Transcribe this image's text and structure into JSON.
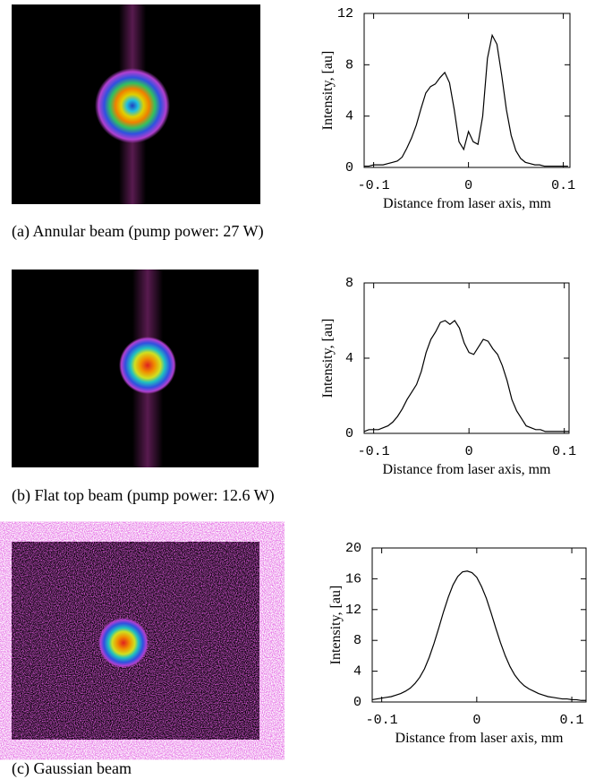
{
  "chart_data": [
    {
      "type": "line",
      "caption": "(a) Annular beam (pump power: 27 W)",
      "ylabel": "Intensity, [au]",
      "xlabel": "Distance from laser axis, mm",
      "color": "#000000",
      "xlim": [
        -0.11,
        0.107
      ],
      "ylim": [
        0,
        12
      ],
      "xticks": [
        -0.1,
        0,
        0.1
      ],
      "yticks": [
        0,
        4,
        8,
        12
      ],
      "x": [
        -0.11,
        -0.105,
        -0.1,
        -0.095,
        -0.09,
        -0.085,
        -0.08,
        -0.075,
        -0.07,
        -0.065,
        -0.06,
        -0.055,
        -0.05,
        -0.045,
        -0.04,
        -0.035,
        -0.03,
        -0.025,
        -0.02,
        -0.015,
        -0.01,
        -0.005,
        0,
        0.005,
        0.01,
        0.015,
        0.02,
        0.025,
        0.03,
        0.035,
        0.04,
        0.045,
        0.05,
        0.055,
        0.06,
        0.065,
        0.07,
        0.075,
        0.08,
        0.085,
        0.09,
        0.095,
        0.1,
        0.105
      ],
      "values": [
        0.1,
        0.1,
        0.2,
        0.2,
        0.2,
        0.3,
        0.4,
        0.5,
        0.8,
        1.5,
        2.3,
        3.3,
        4.6,
        5.8,
        6.3,
        6.5,
        7.0,
        7.4,
        6.6,
        4.5,
        2.0,
        1.4,
        2.8,
        2.0,
        1.8,
        4.0,
        8.5,
        10.3,
        9.6,
        7.2,
        4.5,
        2.5,
        1.3,
        0.7,
        0.4,
        0.3,
        0.2,
        0.2,
        0.1,
        0.1,
        0.1,
        0.1,
        0.1,
        0.1
      ]
    },
    {
      "type": "line",
      "caption": "(b) Flat top beam (pump power: 12.6 W)",
      "ylabel": "Intensity, [au]",
      "xlabel": "Distance from laser axis, mm",
      "color": "#000000",
      "xlim": [
        -0.11,
        0.105
      ],
      "ylim": [
        0,
        8
      ],
      "xticks": [
        -0.1,
        0,
        0.1
      ],
      "yticks": [
        0,
        4,
        8
      ],
      "x": [
        -0.11,
        -0.105,
        -0.1,
        -0.095,
        -0.09,
        -0.085,
        -0.08,
        -0.075,
        -0.07,
        -0.065,
        -0.06,
        -0.055,
        -0.05,
        -0.045,
        -0.04,
        -0.035,
        -0.03,
        -0.025,
        -0.02,
        -0.015,
        -0.01,
        -0.005,
        0,
        0.005,
        0.01,
        0.015,
        0.02,
        0.025,
        0.03,
        0.035,
        0.04,
        0.045,
        0.05,
        0.055,
        0.06,
        0.065,
        0.07,
        0.075,
        0.08,
        0.085,
        0.09,
        0.095,
        0.1,
        0.105
      ],
      "values": [
        0.1,
        0.2,
        0.2,
        0.2,
        0.3,
        0.4,
        0.6,
        0.9,
        1.3,
        1.8,
        2.2,
        2.6,
        3.3,
        4.3,
        5.0,
        5.4,
        5.9,
        6.0,
        5.8,
        6.0,
        5.6,
        4.8,
        4.3,
        4.2,
        4.6,
        5.0,
        4.9,
        4.5,
        4.2,
        3.6,
        2.8,
        1.8,
        1.2,
        0.8,
        0.4,
        0.3,
        0.2,
        0.2,
        0.1,
        0.1,
        0.1,
        0.1,
        0.1,
        0.1
      ]
    },
    {
      "type": "line",
      "caption": "(c) Gaussian beam",
      "ylabel": "Intensity, [au]",
      "xlabel": "Distance from laser axis, mm",
      "color": "#000000",
      "xlim": [
        -0.11,
        0.115
      ],
      "ylim": [
        0,
        20
      ],
      "xticks": [
        -0.1,
        0,
        0.1
      ],
      "yticks": [
        0,
        4,
        8,
        12,
        16,
        20
      ],
      "x": [
        -0.11,
        -0.105,
        -0.1,
        -0.095,
        -0.09,
        -0.085,
        -0.08,
        -0.075,
        -0.07,
        -0.065,
        -0.06,
        -0.055,
        -0.05,
        -0.045,
        -0.04,
        -0.035,
        -0.03,
        -0.025,
        -0.02,
        -0.015,
        -0.01,
        -0.005,
        0,
        0.005,
        0.01,
        0.015,
        0.02,
        0.025,
        0.03,
        0.035,
        0.04,
        0.045,
        0.05,
        0.055,
        0.06,
        0.065,
        0.07,
        0.075,
        0.08,
        0.085,
        0.09,
        0.095,
        0.1,
        0.105,
        0.11,
        0.115
      ],
      "values": [
        0.3,
        0.4,
        0.5,
        0.6,
        0.7,
        0.9,
        1.1,
        1.4,
        1.8,
        2.4,
        3.2,
        4.3,
        5.8,
        7.6,
        9.6,
        11.7,
        13.6,
        15.2,
        16.3,
        16.9,
        17.0,
        16.8,
        16.2,
        15.0,
        13.5,
        11.6,
        9.6,
        7.7,
        6.0,
        4.6,
        3.5,
        2.7,
        2.1,
        1.7,
        1.4,
        1.1,
        0.9,
        0.7,
        0.6,
        0.5,
        0.4,
        0.4,
        0.3,
        0.3,
        0.2,
        0.2
      ]
    }
  ]
}
